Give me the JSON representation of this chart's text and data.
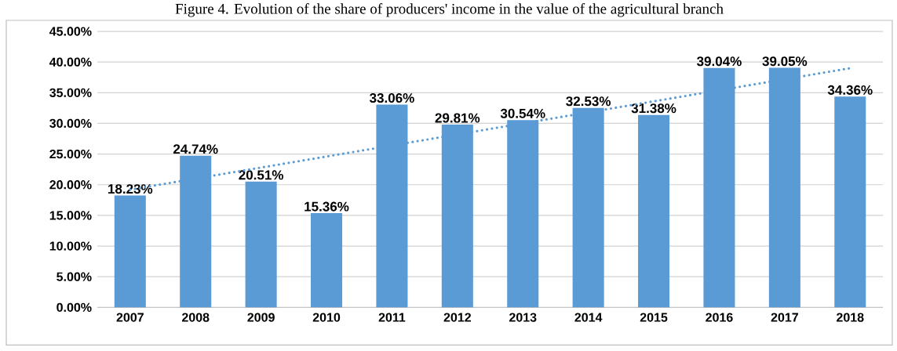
{
  "chart_data": {
    "type": "bar",
    "title": "Figure 4. Evolution of the share of producers' income in the value of the agricultural branch",
    "x": [
      2007,
      2008,
      2009,
      2010,
      2011,
      2012,
      2013,
      2014,
      2015,
      2016,
      2017,
      2018
    ],
    "xlim": [
      2006.5,
      2018.5
    ],
    "xticks": [
      2007,
      2008,
      2009,
      2010,
      2011,
      2012,
      2013,
      2014,
      2015,
      2016,
      2017,
      2018
    ],
    "series": [
      {
        "color": "#5b9bd5",
        "values": [
          18.23,
          24.74,
          20.51,
          15.36,
          33.06,
          29.81,
          30.54,
          32.53,
          31.38,
          39.04,
          39.05,
          34.36
        ],
        "value_labels": [
          "18.23%",
          "24.74%",
          "20.51%",
          "15.36%",
          "33.06%",
          "29.81%",
          "30.54%",
          "32.53%",
          "31.38%",
          "39.04%",
          "39.05%",
          "34.36%"
        ]
      },
      {
        "type": "line",
        "color": "#5b9bd5",
        "line_style": "dotted",
        "x": [
          2007,
          2018
        ],
        "values": [
          19.2,
          39.0
        ]
      }
    ],
    "ylim": [
      0,
      45
    ],
    "yticks": [
      {
        "value": 0,
        "label": "0.00%"
      },
      {
        "value": 5,
        "label": "5.00%"
      },
      {
        "value": 10,
        "label": "10.00%"
      },
      {
        "value": 15,
        "label": "15.00%"
      },
      {
        "value": 20,
        "label": "20.00%"
      },
      {
        "value": 25,
        "label": "25.00%"
      },
      {
        "value": 30,
        "label": "30.00%"
      },
      {
        "value": 35,
        "label": "35.00%"
      },
      {
        "value": 40,
        "label": "40.00%"
      },
      {
        "value": 45,
        "label": "45.00%"
      }
    ],
    "grid": "y"
  }
}
